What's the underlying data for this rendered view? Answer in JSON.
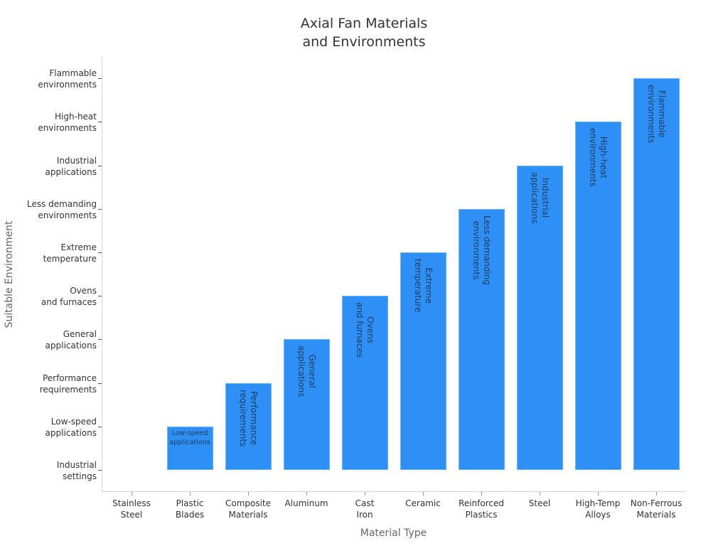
{
  "chart_data": {
    "type": "bar",
    "title": "Axial Fan Materials\nand Environments",
    "title_lines": [
      "Axial Fan Materials",
      "and Environments"
    ],
    "xlabel": "Material Type",
    "ylabel": "Suitable Environment",
    "categories": [
      "Stainless Steel",
      "Plastic Blades",
      "Composite Materials",
      "Aluminum",
      "Cast Iron",
      "Ceramic",
      "Reinforced Plastics",
      "Steel",
      "High-Temp Alloys",
      "Non-Ferrous Materials"
    ],
    "category_labels": [
      [
        "Stainless",
        "Steel"
      ],
      [
        "Plastic",
        "Blades"
      ],
      [
        "Composite",
        "Materials"
      ],
      [
        "Aluminum"
      ],
      [
        "Cast",
        "Iron"
      ],
      [
        "Ceramic"
      ],
      [
        "Reinforced",
        "Plastics"
      ],
      [
        "Steel"
      ],
      [
        "High-Temp",
        "Alloys"
      ],
      [
        "Non-Ferrous",
        "Materials"
      ]
    ],
    "y_categories": [
      "Industrial settings",
      "Low-speed applications",
      "Performance requirements",
      "General applications",
      "Ovens and furnaces",
      "Extreme temperature",
      "Less demanding environments",
      "Industrial applications",
      "High-heat environments",
      "Flammable environments"
    ],
    "y_tick_labels": [
      [
        "Industrial",
        "settings"
      ],
      [
        "Low-speed",
        "applications"
      ],
      [
        "Performance",
        "requirements"
      ],
      [
        "General",
        "applications"
      ],
      [
        "Ovens",
        "and furnaces"
      ],
      [
        "Extreme",
        "temperature"
      ],
      [
        "Less demanding",
        "environments"
      ],
      [
        "Industrial",
        "applications"
      ],
      [
        "High-heat",
        "environments"
      ],
      [
        "Flammable",
        "environments"
      ]
    ],
    "values": [
      "Industrial settings",
      "Low-speed applications",
      "Performance requirements",
      "General applications",
      "Ovens and furnaces",
      "Extreme temperature",
      "Less demanding environments",
      "Industrial applications",
      "High-heat environments",
      "Flammable environments"
    ],
    "value_indices": [
      0,
      1,
      2,
      3,
      4,
      5,
      6,
      7,
      8,
      9
    ],
    "bar_labels": [
      "",
      "Low-speed\napplications",
      "Performance\nrequirements",
      "General\napplications",
      "Ovens\nand furnaces",
      "Extreme\ntemperature",
      "Less demanding\nenvironments",
      "Industrial\napplications",
      "High-heat\nenvironments",
      "Flammable\nenvironments"
    ],
    "ylim": [
      0,
      9
    ],
    "grid": false,
    "legend": null,
    "colors": {
      "bar": "#2e90f5",
      "bar_edge": "#6ab4ff",
      "bar_text": "#1f3a5f",
      "axis": "#d4d4d4",
      "axis_label": "#666666",
      "text": "#333333"
    }
  }
}
